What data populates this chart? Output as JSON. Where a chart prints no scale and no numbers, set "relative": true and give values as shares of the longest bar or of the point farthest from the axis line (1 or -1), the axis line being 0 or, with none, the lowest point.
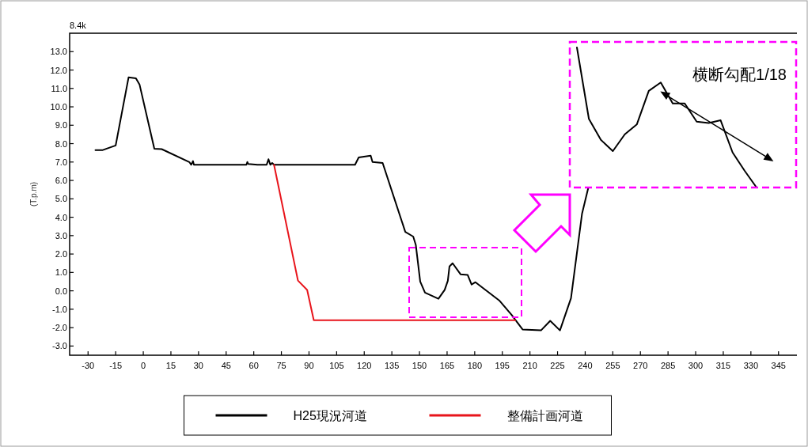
{
  "chart_data": [
    {
      "type": "line",
      "ylabel": "(T.p.m)",
      "annotations": [
        "8.4k"
      ],
      "xlim": [
        -40,
        355
      ],
      "ylim": [
        -3.5,
        14
      ],
      "xticks": [
        -30,
        -15,
        0,
        15,
        30,
        45,
        60,
        75,
        90,
        105,
        120,
        135,
        150,
        165,
        180,
        195,
        210,
        225,
        240,
        255,
        270,
        285,
        300,
        315,
        330,
        345
      ],
      "yticks": [
        {
          "value": 13,
          "label": "13.0"
        },
        {
          "value": 12,
          "label": "12.0"
        },
        {
          "value": 11,
          "label": "11.0"
        },
        {
          "value": 10,
          "label": "10.0"
        },
        {
          "value": 9,
          "label": "9.0"
        },
        {
          "value": 8,
          "label": "8.0"
        },
        {
          "value": 7,
          "label": "7.0"
        },
        {
          "value": 6,
          "label": "6.0"
        },
        {
          "value": 5,
          "label": "5.0"
        },
        {
          "value": 4,
          "label": "4.0"
        },
        {
          "value": 3,
          "label": "3.0"
        },
        {
          "value": 2,
          "label": "2.0"
        },
        {
          "value": 1,
          "label": "1.0"
        },
        {
          "value": 0,
          "label": "0.0"
        },
        {
          "value": -1,
          "label": "-1.0"
        },
        {
          "value": -2,
          "label": "-2.0"
        },
        {
          "value": -3,
          "label": "-3.0"
        }
      ],
      "grid": false,
      "legend": "bottom",
      "line_style": "solid",
      "series": [
        {
          "name": "H25現況河道",
          "color": "#000000",
          "x": [
            -26,
            -22,
            -15,
            -8,
            -4,
            -2,
            6,
            10,
            25,
            26,
            27,
            27.5,
            56,
            56.5,
            57,
            62,
            67,
            68,
            69,
            70,
            71,
            115,
            117,
            123.5,
            124.5,
            130,
            142.3,
            146.6,
            148,
            150.4,
            153,
            160.3,
            163.7,
            165.4,
            166.3,
            168,
            172.3,
            176.2,
            178.3,
            180.4,
            193.3,
            200,
            206,
            216,
            221,
            226.3,
            232.3,
            238.3,
            241.7
          ],
          "values": [
            7.65,
            7.65,
            7.9,
            11.6,
            11.55,
            11.2,
            7.72,
            7.7,
            7.0,
            6.85,
            7.05,
            6.85,
            6.85,
            7.0,
            6.9,
            6.85,
            6.85,
            7.15,
            6.85,
            6.95,
            6.85,
            6.85,
            7.25,
            7.35,
            7.0,
            6.95,
            3.2,
            2.95,
            2.5,
            0.5,
            -0.1,
            -0.43,
            0.05,
            0.55,
            1.33,
            1.5,
            0.9,
            0.86,
            0.34,
            0.47,
            -0.52,
            -1.3,
            -2.1,
            -2.15,
            -1.63,
            -2.15,
            -0.4,
            4.2,
            5.6
          ]
        },
        {
          "name": "整備計画河道",
          "color": "#e8141b",
          "x": [
            71,
            84,
            89,
            92.6,
            202
          ],
          "values": [
            6.85,
            0.56,
            0.05,
            -1.6,
            -1.6
          ]
        }
      ]
    },
    {
      "type": "line",
      "annotations": [
        "横断勾配1/18"
      ],
      "relative": true,
      "line_style": "solid",
      "categories": [
        null,
        null,
        null,
        null,
        null,
        null,
        null,
        null,
        null,
        null,
        null,
        null,
        null,
        null,
        null,
        null
      ],
      "series": [
        {
          "color": "#000000",
          "values": [
            1,
            0.49,
            0.34,
            0.26,
            0.38,
            0.45,
            0.69,
            0.75,
            0.6,
            0.6,
            0.47,
            0.46,
            0.48,
            0.25,
            0.12,
            0
          ]
        }
      ]
    }
  ]
}
